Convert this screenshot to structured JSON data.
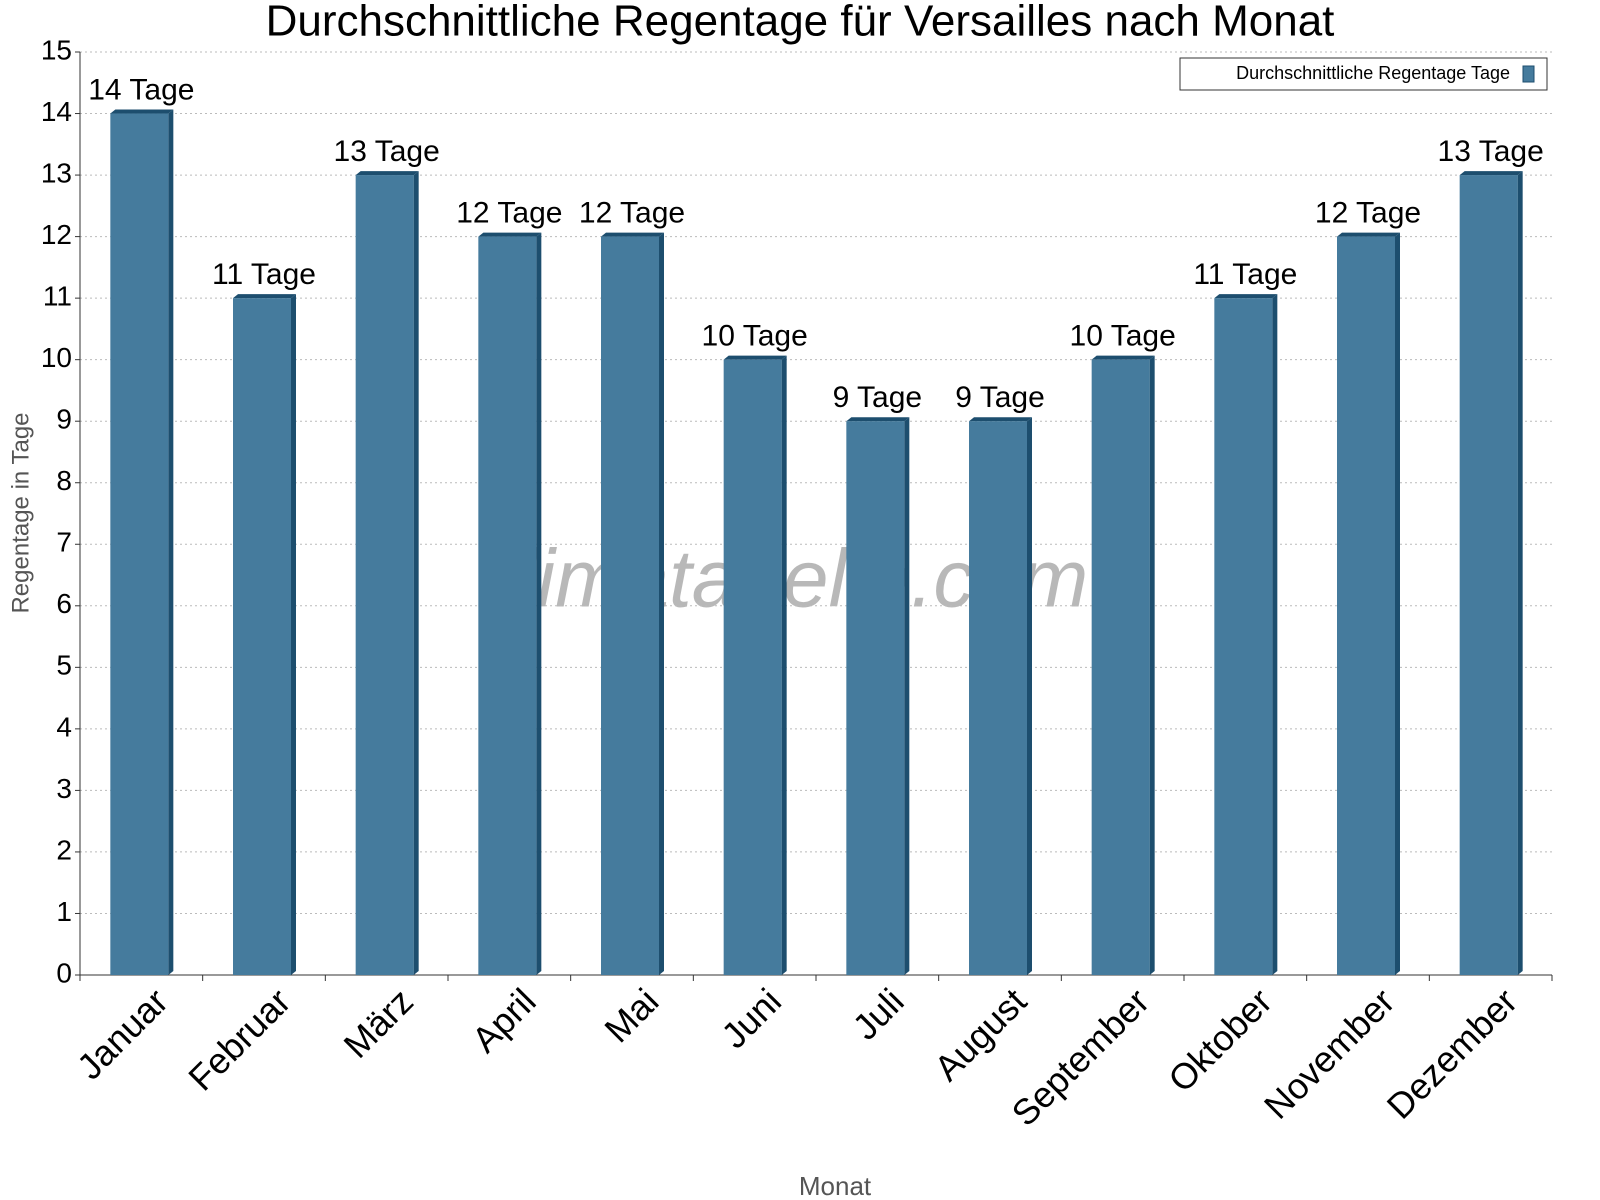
{
  "chart_data": {
    "type": "bar",
    "title": "Durchschnittliche Regentage für Versailles nach Monat",
    "x_label": "Monat",
    "y_label": "Regentage in Tage",
    "watermark": "klimatabelle.com",
    "categories": [
      "Januar",
      "Februar",
      "März",
      "April",
      "Mai",
      "Juni",
      "Juli",
      "August",
      "September",
      "Oktober",
      "November",
      "Dezember"
    ],
    "series": [
      {
        "name": "Durchschnittliche Regentage Tage",
        "color": "#457b9d",
        "values": [
          14,
          11,
          13,
          12,
          12,
          10,
          9,
          9,
          10,
          11,
          12,
          13
        ],
        "value_labels": [
          "14 Tage",
          "11 Tage",
          "13 Tage",
          "12 Tage",
          "12 Tage",
          "10 Tage",
          "9 Tage",
          "9 Tage",
          "10 Tage",
          "11 Tage",
          "12 Tage",
          "13 Tage"
        ]
      }
    ],
    "ylim": [
      0,
      15
    ],
    "yticks": [
      0,
      1,
      2,
      3,
      4,
      5,
      6,
      7,
      8,
      9,
      10,
      11,
      12,
      13,
      14,
      15
    ],
    "grid": true,
    "legend": "top-right"
  }
}
